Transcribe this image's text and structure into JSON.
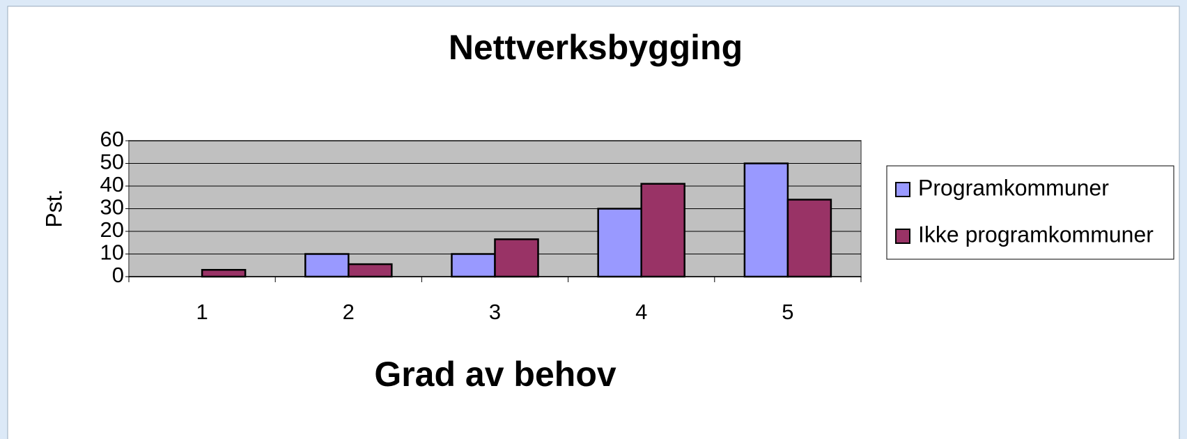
{
  "chart_data": {
    "type": "bar",
    "title": "Nettverksbygging",
    "x_label": "Grad av behov",
    "y_label": "Pst.",
    "categories": [
      "1",
      "2",
      "3",
      "4",
      "5"
    ],
    "series": [
      {
        "name": "Programkommuner",
        "color": "#9999ff",
        "values": [
          0,
          10,
          10,
          30,
          50
        ]
      },
      {
        "name": "Ikke programkommuner",
        "color": "#993366",
        "values": [
          3,
          5.5,
          16.5,
          41,
          34
        ]
      }
    ],
    "ylim": [
      0,
      60
    ],
    "yticks": [
      0,
      10,
      20,
      30,
      40,
      50,
      60
    ],
    "grid": true,
    "legend": "right"
  }
}
